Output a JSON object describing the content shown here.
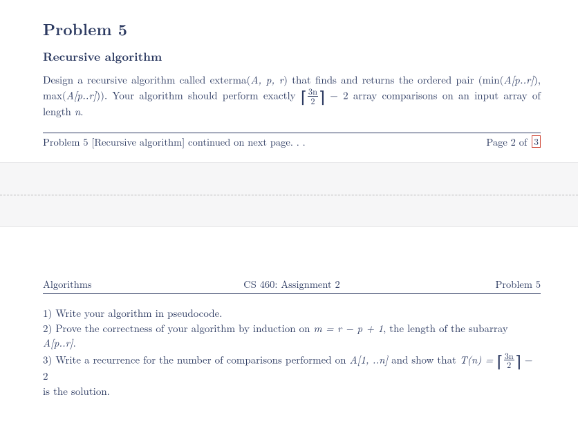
{
  "problem": {
    "title": "Problem 5",
    "subtitle": "Recursive algorithm",
    "body_pre": "Design a recursive algorithm called exterma(",
    "args": "A, p, r",
    "body_mid1": ") that finds and returns the ordered pair (min(",
    "arr1": "A[p..r]",
    "body_mid2": "), max(",
    "arr2": "A[p..r]",
    "body_mid3": ")). Your algorithm should perform exactly ",
    "ceil_open": "⌈",
    "frac_num": "3n",
    "frac_den": "2",
    "ceil_close": "⌉",
    "minus2": " − 2 array comparisons on an input array of length ",
    "n": "n",
    "period": "."
  },
  "footer2": {
    "cont": "Problem 5 [Recursive algorithm] continued on next page. . .",
    "page_pre": "Page 2 of",
    "page_link": "3"
  },
  "header3": {
    "left": "Algorithms",
    "center": "CS 460: Assignment 2",
    "right": "Problem 5"
  },
  "tasks": {
    "t1": "1) Write your algorithm in pseudocode.",
    "t2_pre": "2) Prove the correctness of your algorithm by induction on ",
    "t2_m": "m = r − p + 1",
    "t2_mid": ", the length of the subarray ",
    "t2_arr": "A[p..r]",
    "t2_post": ".",
    "t3_pre": "3) Write a recurrence for the number of comparisons performed on ",
    "t3_A": "A[1, ..n]",
    "t3_mid": " and show that ",
    "t3_T": "T(n) = ",
    "t3_minus2": " − 2",
    "t3_post": " is the solution."
  }
}
